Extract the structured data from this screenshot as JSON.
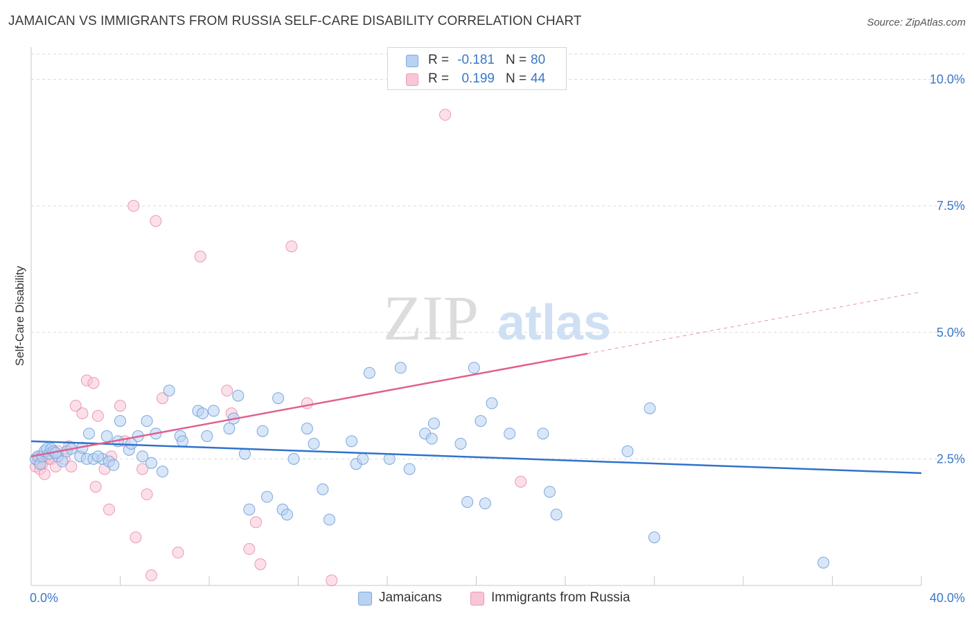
{
  "header": {
    "title": "JAMAICAN VS IMMIGRANTS FROM RUSSIA SELF-CARE DISABILITY CORRELATION CHART",
    "source": "Source: ZipAtlas.com"
  },
  "watermark": {
    "zip": "ZIP",
    "atlas": "atlas"
  },
  "legend_top": {
    "rows": [
      {
        "r_label": "R =",
        "r_value": "-0.181",
        "n_label": "N =",
        "n_value": "80"
      },
      {
        "r_label": "R =",
        "r_value": "0.199",
        "n_label": "N =",
        "n_value": "44"
      }
    ]
  },
  "legend_bottom": {
    "items": [
      {
        "label": "Jamaicans"
      },
      {
        "label": "Immigrants from Russia"
      }
    ]
  },
  "colors": {
    "blue_fill": "#b8d2f2",
    "blue_stroke": "#7aa7de",
    "blue_line": "#2f72cc",
    "pink_fill": "#f8c6d6",
    "pink_stroke": "#ec98b4",
    "pink_line": "#e0608e",
    "axis_text": "#3a78c8",
    "grid": "#d9d9d9"
  },
  "chart_data": {
    "type": "scatter",
    "title": "JAMAICAN VS IMMIGRANTS FROM RUSSIA SELF-CARE DISABILITY CORRELATION CHART",
    "xlabel": "",
    "ylabel": "Self-Care Disability",
    "xlim": [
      0,
      40
    ],
    "ylim": [
      0,
      10.5
    ],
    "x_tick_labels": [
      "0.0%",
      "40.0%"
    ],
    "y_ticks": [
      2.5,
      5.0,
      7.5,
      10.0
    ],
    "y_tick_labels": [
      "2.5%",
      "5.0%",
      "7.5%",
      "10.0%"
    ],
    "grid": true,
    "legend_position": "top-center",
    "series": [
      {
        "name": "Jamaicans",
        "r": -0.181,
        "n": 80,
        "trend": {
          "x0": 0,
          "y0": 2.85,
          "x1": 40,
          "y1": 2.22,
          "dashed_from": null
        },
        "points": [
          [
            0.2,
            2.5
          ],
          [
            0.3,
            2.55
          ],
          [
            0.4,
            2.4
          ],
          [
            0.5,
            2.55
          ],
          [
            0.6,
            2.65
          ],
          [
            0.7,
            2.7
          ],
          [
            0.8,
            2.6
          ],
          [
            0.9,
            2.7
          ],
          [
            1.0,
            2.65
          ],
          [
            1.2,
            2.55
          ],
          [
            1.4,
            2.45
          ],
          [
            1.6,
            2.65
          ],
          [
            1.8,
            2.7
          ],
          [
            2.2,
            2.55
          ],
          [
            2.5,
            2.5
          ],
          [
            2.8,
            2.5
          ],
          [
            3.2,
            2.5
          ],
          [
            3.5,
            2.45
          ],
          [
            3.7,
            2.38
          ],
          [
            2.6,
            3.0
          ],
          [
            3.4,
            2.95
          ],
          [
            3.9,
            2.85
          ],
          [
            4.0,
            3.25
          ],
          [
            4.4,
            2.68
          ],
          [
            4.8,
            2.95
          ],
          [
            5.0,
            2.55
          ],
          [
            5.2,
            3.25
          ],
          [
            5.6,
            3.0
          ],
          [
            5.9,
            2.25
          ],
          [
            6.2,
            3.85
          ],
          [
            6.7,
            2.95
          ],
          [
            7.5,
            3.45
          ],
          [
            7.7,
            3.4
          ],
          [
            7.9,
            2.95
          ],
          [
            8.2,
            3.45
          ],
          [
            8.9,
            3.1
          ],
          [
            9.1,
            3.3
          ],
          [
            9.3,
            3.75
          ],
          [
            9.6,
            2.6
          ],
          [
            9.8,
            1.5
          ],
          [
            10.4,
            3.05
          ],
          [
            10.6,
            1.75
          ],
          [
            11.1,
            3.7
          ],
          [
            11.3,
            1.5
          ],
          [
            11.5,
            1.4
          ],
          [
            11.8,
            2.5
          ],
          [
            12.4,
            3.1
          ],
          [
            12.7,
            2.8
          ],
          [
            13.1,
            1.9
          ],
          [
            13.4,
            1.3
          ],
          [
            14.4,
            2.85
          ],
          [
            14.6,
            2.4
          ],
          [
            14.9,
            2.5
          ],
          [
            15.2,
            4.2
          ],
          [
            16.1,
            2.5
          ],
          [
            16.6,
            4.3
          ],
          [
            17.0,
            2.3
          ],
          [
            17.7,
            3.0
          ],
          [
            18.0,
            2.9
          ],
          [
            18.1,
            3.2
          ],
          [
            19.3,
            2.8
          ],
          [
            19.6,
            1.65
          ],
          [
            19.9,
            4.3
          ],
          [
            20.2,
            3.25
          ],
          [
            20.4,
            1.62
          ],
          [
            20.7,
            3.6
          ],
          [
            21.5,
            3.0
          ],
          [
            23.0,
            3.0
          ],
          [
            23.3,
            1.85
          ],
          [
            23.6,
            1.4
          ],
          [
            26.8,
            2.65
          ],
          [
            27.8,
            3.5
          ],
          [
            28.0,
            0.95
          ],
          [
            35.6,
            0.45
          ],
          [
            4.5,
            2.8
          ],
          [
            6.8,
            2.85
          ],
          [
            3.0,
            2.55
          ],
          [
            2.3,
            2.72
          ],
          [
            1.1,
            2.62
          ],
          [
            5.4,
            2.42
          ]
        ]
      },
      {
        "name": "Immigrants from Russia",
        "r": 0.199,
        "n": 44,
        "trend": {
          "x0": 0,
          "y0": 2.55,
          "x1": 40,
          "y1": 5.8,
          "dashed_from": 25
        },
        "points": [
          [
            0.2,
            2.35
          ],
          [
            0.3,
            2.45
          ],
          [
            0.4,
            2.3
          ],
          [
            0.5,
            2.4
          ],
          [
            0.6,
            2.2
          ],
          [
            0.7,
            2.55
          ],
          [
            0.8,
            2.5
          ],
          [
            0.9,
            2.5
          ],
          [
            1.1,
            2.35
          ],
          [
            1.2,
            2.65
          ],
          [
            1.5,
            2.5
          ],
          [
            1.7,
            2.75
          ],
          [
            1.8,
            2.35
          ],
          [
            2.0,
            3.55
          ],
          [
            2.3,
            3.4
          ],
          [
            2.5,
            4.05
          ],
          [
            2.8,
            4.0
          ],
          [
            2.9,
            1.95
          ],
          [
            3.0,
            3.35
          ],
          [
            3.3,
            2.3
          ],
          [
            3.5,
            1.5
          ],
          [
            3.6,
            2.55
          ],
          [
            4.0,
            3.55
          ],
          [
            4.2,
            2.85
          ],
          [
            4.6,
            7.5
          ],
          [
            4.7,
            0.95
          ],
          [
            5.0,
            2.3
          ],
          [
            5.2,
            1.8
          ],
          [
            5.4,
            0.2
          ],
          [
            5.6,
            7.2
          ],
          [
            5.9,
            3.7
          ],
          [
            6.6,
            0.65
          ],
          [
            7.6,
            6.5
          ],
          [
            8.8,
            3.85
          ],
          [
            9.0,
            3.4
          ],
          [
            9.8,
            0.72
          ],
          [
            10.1,
            1.25
          ],
          [
            10.3,
            0.42
          ],
          [
            11.7,
            6.7
          ],
          [
            12.4,
            3.6
          ],
          [
            13.5,
            0.1
          ],
          [
            18.6,
            9.3
          ],
          [
            22.0,
            2.05
          ],
          [
            0.4,
            2.55
          ]
        ]
      }
    ]
  }
}
